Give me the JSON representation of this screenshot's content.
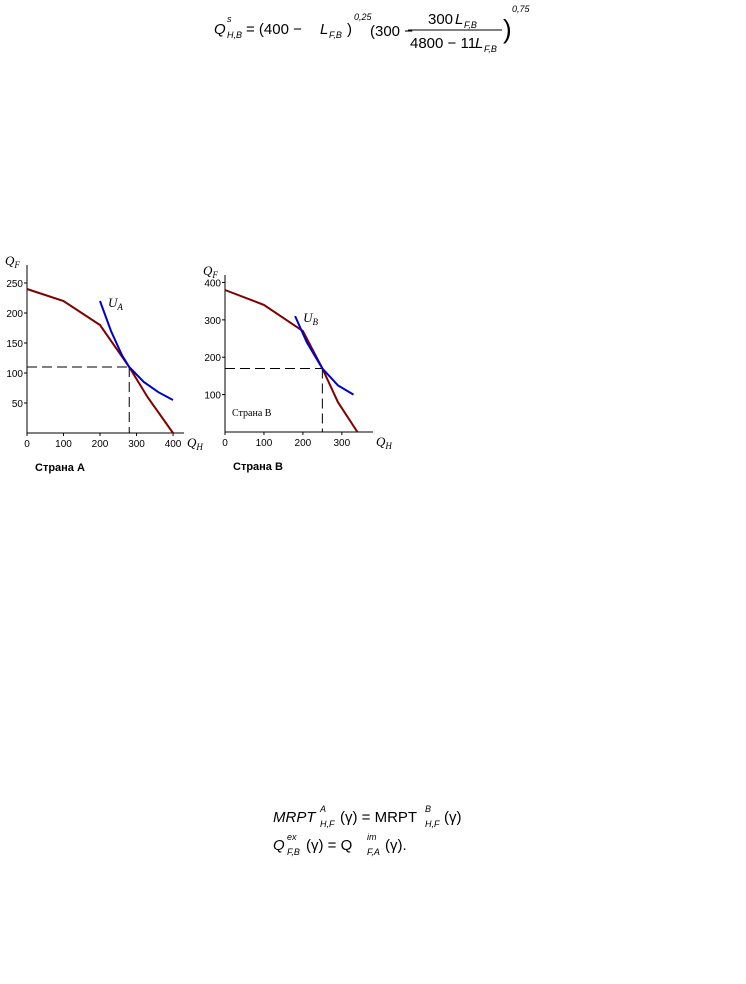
{
  "formula_top": [
    "Q",
    "s",
    "H,B",
    "= (400 − ",
    "L",
    "F,B",
    ")",
    "0,25",
    "(300 −",
    "300",
    "L",
    "F,B",
    "4800 − 11",
    "L",
    "F,B",
    ")",
    "0,75"
  ],
  "formula_bottom": [
    [
      "MRPT",
      "A",
      "H,F",
      "(γ) = MRPT",
      "B",
      "H,F",
      "(γ)"
    ],
    [
      "Q",
      "ex",
      "F,B",
      "(γ) = Q",
      "im",
      "F,A",
      "(γ)."
    ]
  ],
  "charts": [
    {
      "type": "line",
      "x_label": "Q",
      "x_label_sub": "H",
      "y_label": "Q",
      "y_label_sub": "F",
      "caption": "Страна A",
      "xlim": [
        0,
        430
      ],
      "ylim": [
        0,
        280
      ],
      "xticks": [
        0,
        100,
        200,
        300,
        400
      ],
      "yticks": [
        50,
        100,
        150,
        200,
        250
      ],
      "equilibrium": {
        "x": 280,
        "y": 110
      },
      "series": [
        {
          "color": "#800000",
          "x": [
            0,
            100,
            200,
            280,
            330,
            400
          ],
          "values": [
            240,
            220,
            180,
            110,
            60,
            0
          ]
        },
        {
          "color": "#0000cc",
          "x": [
            200,
            230,
            260,
            280,
            320,
            360,
            400
          ],
          "values": [
            220,
            170,
            130,
            110,
            85,
            68,
            55
          ],
          "label": "U",
          "label_sub": "A"
        }
      ]
    },
    {
      "type": "line",
      "x_label": "Q",
      "x_label_sub": "H",
      "y_label": "Q",
      "y_label_sub": "F",
      "caption": "Страна B",
      "annotation": "Страна B",
      "xlim": [
        0,
        380
      ],
      "ylim": [
        0,
        420
      ],
      "xticks": [
        0,
        100,
        200,
        300
      ],
      "yticks": [
        100,
        200,
        300,
        400
      ],
      "equilibrium": {
        "x": 250,
        "y": 170
      },
      "series": [
        {
          "color": "#800000",
          "x": [
            0,
            100,
            200,
            250,
            290,
            340
          ],
          "values": [
            380,
            340,
            270,
            170,
            80,
            0
          ]
        },
        {
          "color": "#0000cc",
          "x": [
            180,
            210,
            250,
            290,
            330
          ],
          "values": [
            310,
            240,
            170,
            125,
            100
          ],
          "label": "U",
          "label_sub": "B"
        }
      ]
    }
  ]
}
